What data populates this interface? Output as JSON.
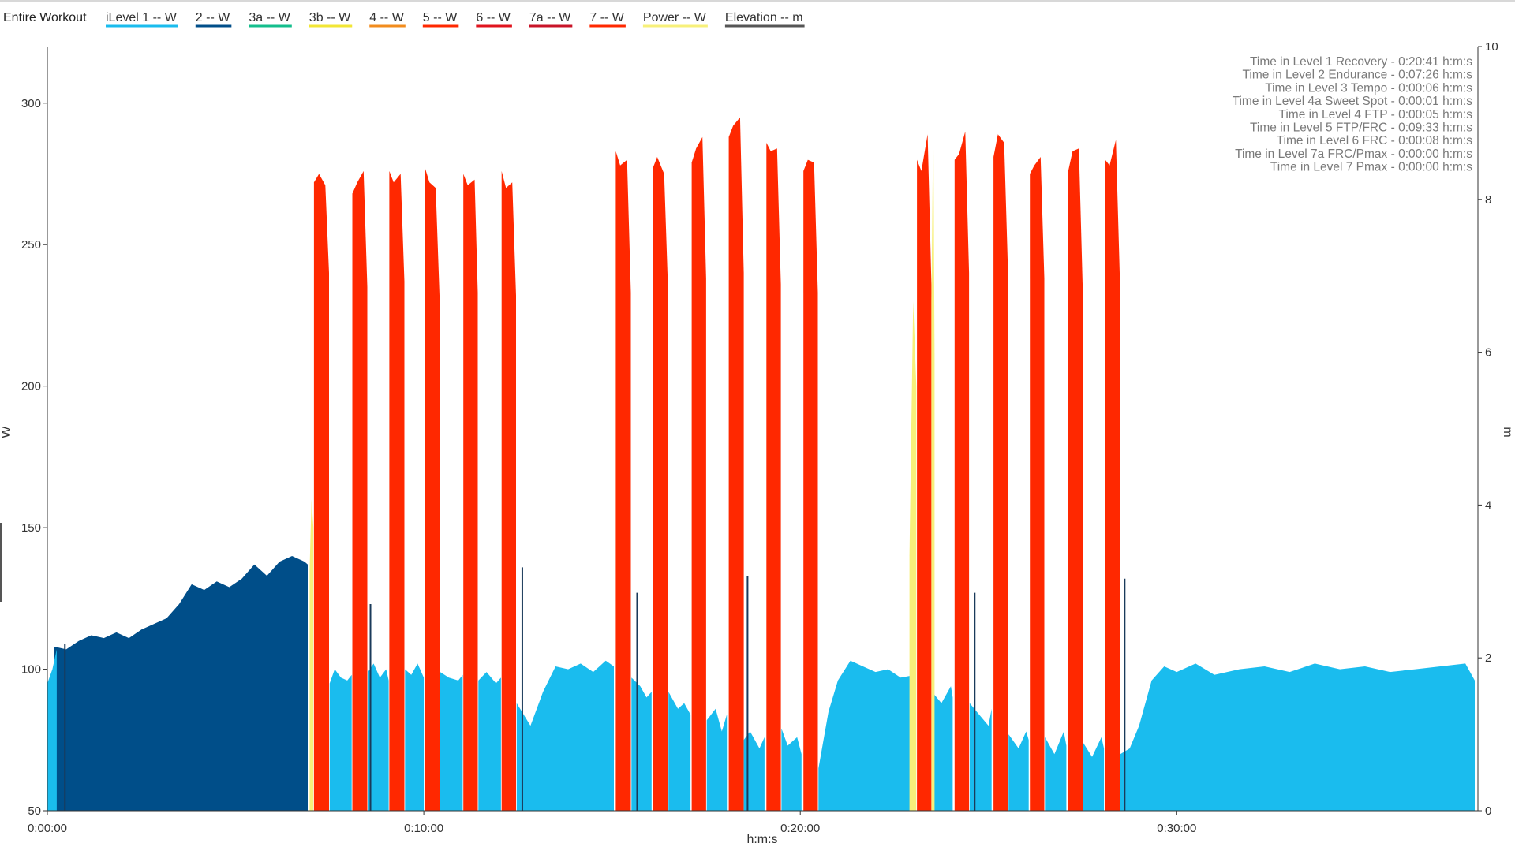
{
  "chart_data": {
    "type": "area",
    "title": "Entire Workout",
    "xlabel": "h:m:s",
    "ylabel": "W",
    "y2label": "m",
    "x_unit": "seconds",
    "xlim": [
      0,
      2280
    ],
    "ylim": [
      50,
      320
    ],
    "y2lim": [
      0,
      10
    ],
    "x_ticks": [
      {
        "value": 0,
        "label": "0:00:00"
      },
      {
        "value": 600,
        "label": "0:10:00"
      },
      {
        "value": 1200,
        "label": "0:20:00"
      },
      {
        "value": 1800,
        "label": "0:30:00"
      }
    ],
    "y_ticks": [
      50,
      100,
      150,
      200,
      250,
      300
    ],
    "y2_ticks": [
      0,
      2,
      4,
      6,
      8,
      10
    ],
    "grid": false,
    "legend_position": "top-left",
    "legend": [
      {
        "key": "level1",
        "label": "iLevel 1  -- W",
        "color": "#1ABCEE"
      },
      {
        "key": "level2",
        "label": "2  -- W",
        "color": "#004E89"
      },
      {
        "key": "level3a",
        "label": "3a  -- W",
        "color": "#14BE8C"
      },
      {
        "key": "level3b",
        "label": "3b  -- W",
        "color": "#F2E635"
      },
      {
        "key": "level4",
        "label": "4  -- W",
        "color": "#F28C1E"
      },
      {
        "key": "level5",
        "label": "5  -- W",
        "color": "#FF2800"
      },
      {
        "key": "level6",
        "label": "6  -- W",
        "color": "#E0141E"
      },
      {
        "key": "level7a",
        "label": "7a  -- W",
        "color": "#C81428"
      },
      {
        "key": "level7",
        "label": "7  -- W",
        "color": "#FF2800"
      },
      {
        "key": "power",
        "label": "Power  -- W",
        "color": "#F7F07A"
      },
      {
        "key": "elevation",
        "label": "Elevation  -- m",
        "color": "#555555"
      }
    ],
    "stats": [
      "Time in Level 1 Recovery - 0:20:41 h:m:s",
      "Time in Level 2 Endurance - 0:07:26 h:m:s",
      "Time in Level 3 Tempo - 0:00:06 h:m:s",
      "Time in Level 4a Sweet Spot - 0:00:01 h:m:s",
      "Time in Level 4 FTP - 0:00:05 h:m:s",
      "Time in Level 5 FTP/FRC - 0:09:33 h:m:s",
      "Time in Level 6 FRC - 0:00:08 h:m:s",
      "Time in Level 7a FRC/Pmax - 0:00:00 h:m:s",
      "Time in Level 7 Pmax - 0:00:00 h:m:s"
    ],
    "series": [
      {
        "key": "level2",
        "color": "#004E89",
        "segments": [
          {
            "x": [
              10,
              30,
              50,
              70,
              90,
              110,
              130,
              150,
              170,
              190,
              210,
              230,
              250,
              270,
              290,
              310,
              330,
              350,
              370,
              390,
              410,
              415
            ],
            "y": [
              108,
              107,
              110,
              112,
              111,
              113,
              111,
              114,
              116,
              118,
              123,
              130,
              128,
              131,
              129,
              132,
              137,
              133,
              138,
              140,
              138,
              137
            ]
          }
        ]
      },
      {
        "key": "level5",
        "color": "#FF2800",
        "segments": [
          {
            "x": [
              425,
              433,
              443,
              449
            ],
            "y": [
              272,
              275,
              271,
              240
            ]
          },
          {
            "x": [
              486,
              494,
              504,
              510
            ],
            "y": [
              268,
              272,
              276,
              235
            ]
          },
          {
            "x": [
              545,
              552,
              563,
              569
            ],
            "y": [
              276,
              272,
              275,
              237
            ]
          },
          {
            "x": [
              602,
              609,
              619,
              625
            ],
            "y": [
              277,
              272,
              270,
              232
            ]
          },
          {
            "x": [
              663,
              670,
              681,
              686
            ],
            "y": [
              275,
              271,
              273,
              233
            ]
          },
          {
            "x": [
              724,
              731,
              741,
              747
            ],
            "y": [
              276,
              270,
              272,
              232
            ]
          },
          {
            "x": [
              906,
              913,
              924,
              930
            ],
            "y": [
              283,
              278,
              280,
              233
            ]
          },
          {
            "x": [
              965,
              972,
              983,
              989
            ],
            "y": [
              277,
              281,
              275,
              236
            ]
          },
          {
            "x": [
              1027,
              1034,
              1044,
              1050
            ],
            "y": [
              279,
              284,
              288,
              238
            ]
          },
          {
            "x": [
              1086,
              1093,
              1104,
              1110
            ],
            "y": [
              288,
              292,
              295,
              240
            ]
          },
          {
            "x": [
              1146,
              1153,
              1163,
              1169
            ],
            "y": [
              286,
              283,
              284,
              236
            ]
          },
          {
            "x": [
              1205,
              1212,
              1222,
              1228
            ],
            "y": [
              276,
              280,
              279,
              233
            ]
          },
          {
            "x": [
              1386,
              1393,
              1403,
              1409
            ],
            "y": [
              280,
              276,
              289,
              236
            ]
          },
          {
            "x": [
              1446,
              1453,
              1463,
              1469
            ],
            "y": [
              280,
              282,
              290,
              240
            ]
          },
          {
            "x": [
              1508,
              1515,
              1525,
              1531
            ],
            "y": [
              281,
              289,
              286,
              241
            ]
          },
          {
            "x": [
              1566,
              1573,
              1583,
              1589
            ],
            "y": [
              275,
              278,
              281,
              238
            ]
          },
          {
            "x": [
              1627,
              1634,
              1644,
              1650
            ],
            "y": [
              276,
              283,
              284,
              236
            ]
          },
          {
            "x": [
              1686,
              1693,
              1703,
              1709
            ],
            "y": [
              280,
              278,
              287,
              240
            ]
          }
        ]
      },
      {
        "key": "level1",
        "color": "#1ABCEE",
        "segments": [
          {
            "x": [
              0,
              8,
              15
            ],
            "y": [
              95,
              100,
              107
            ]
          },
          {
            "x": [
              450,
              458,
              468,
              478,
              485
            ],
            "y": [
              95,
              100,
              97,
              96,
              98
            ]
          },
          {
            "x": [
              511,
              520,
              530,
              540,
              544
            ],
            "y": [
              99,
              102,
              97,
              100,
              96
            ]
          },
          {
            "x": [
              570,
              580,
              590,
              600
            ],
            "y": [
              100,
              98,
              102,
              97
            ]
          },
          {
            "x": [
              626,
              640,
              655,
              662
            ],
            "y": [
              99,
              97,
              96,
              98
            ]
          },
          {
            "x": [
              687,
              700,
              715,
              723
            ],
            "y": [
              96,
              99,
              95,
              97
            ]
          },
          {
            "x": [
              748,
              770,
              790,
              810,
              830,
              850,
              870,
              890,
              903
            ],
            "y": [
              88,
              80,
              92,
              101,
              100,
              102,
              99,
              103,
              101
            ]
          },
          {
            "x": [
              931,
              945,
              955,
              963
            ],
            "y": [
              97,
              94,
              90,
              92
            ]
          },
          {
            "x": [
              990,
              1005,
              1015,
              1025
            ],
            "y": [
              92,
              86,
              88,
              84
            ]
          },
          {
            "x": [
              1051,
              1065,
              1075,
              1083
            ],
            "y": [
              82,
              86,
              78,
              84
            ]
          },
          {
            "x": [
              1110,
              1120,
              1135,
              1143
            ],
            "y": [
              75,
              78,
              72,
              76
            ]
          },
          {
            "x": [
              1170,
              1180,
              1195,
              1202
            ],
            "y": [
              79,
              73,
              76,
              70
            ]
          },
          {
            "x": [
              1229,
              1245,
              1260,
              1280,
              1300,
              1320,
              1340,
              1360,
              1383
            ],
            "y": [
              65,
              85,
              96,
              103,
              101,
              99,
              100,
              97,
              98
            ]
          },
          {
            "x": [
              1410,
              1425,
              1440,
              1443
            ],
            "y": [
              92,
              88,
              94,
              90
            ]
          },
          {
            "x": [
              1470,
              1485,
              1500,
              1505
            ],
            "y": [
              88,
              84,
              80,
              86
            ]
          },
          {
            "x": [
              1532,
              1548,
              1560,
              1564
            ],
            "y": [
              77,
              72,
              78,
              75
            ]
          },
          {
            "x": [
              1590,
              1605,
              1620,
              1624
            ],
            "y": [
              76,
              70,
              78,
              73
            ]
          },
          {
            "x": [
              1651,
              1665,
              1680,
              1684
            ],
            "y": [
              74,
              69,
              76,
              72
            ]
          },
          {
            "x": [
              1710,
              1725,
              1740,
              1760,
              1780,
              1800,
              1830,
              1860,
              1900,
              1940,
              1980,
              2020,
              2060,
              2100,
              2140,
              2180,
              2220,
              2260,
              2275
            ],
            "y": [
              70,
              72,
              80,
              96,
              101,
              99,
              102,
              98,
              100,
              101,
              99,
              102,
              100,
              101,
              99,
              100,
              101,
              102,
              96
            ]
          }
        ]
      },
      {
        "key": "power",
        "color": "#F7F07A",
        "segments": [
          {
            "x": [
              418,
              421,
              424
            ],
            "y": [
              135,
              160,
              150
            ]
          },
          {
            "x": [
              1374,
              1380,
              1385
            ],
            "y": [
              140,
              230,
              200
            ]
          },
          {
            "x": [
              1409,
              1412,
              1414
            ],
            "y": [
              230,
              295,
              210
            ]
          }
        ]
      }
    ],
    "spikes": [
      {
        "x": 28,
        "y": 109,
        "color": "#1A3A5A"
      },
      {
        "x": 515,
        "y": 123,
        "color": "#1A3A5A"
      },
      {
        "x": 757,
        "y": 136,
        "color": "#1A3A5A"
      },
      {
        "x": 940,
        "y": 127,
        "color": "#1A3A5A"
      },
      {
        "x": 1116,
        "y": 133,
        "color": "#1A3A5A"
      },
      {
        "x": 1478,
        "y": 127,
        "color": "#1A3A5A"
      },
      {
        "x": 1717,
        "y": 132,
        "color": "#1A3A5A"
      }
    ]
  }
}
